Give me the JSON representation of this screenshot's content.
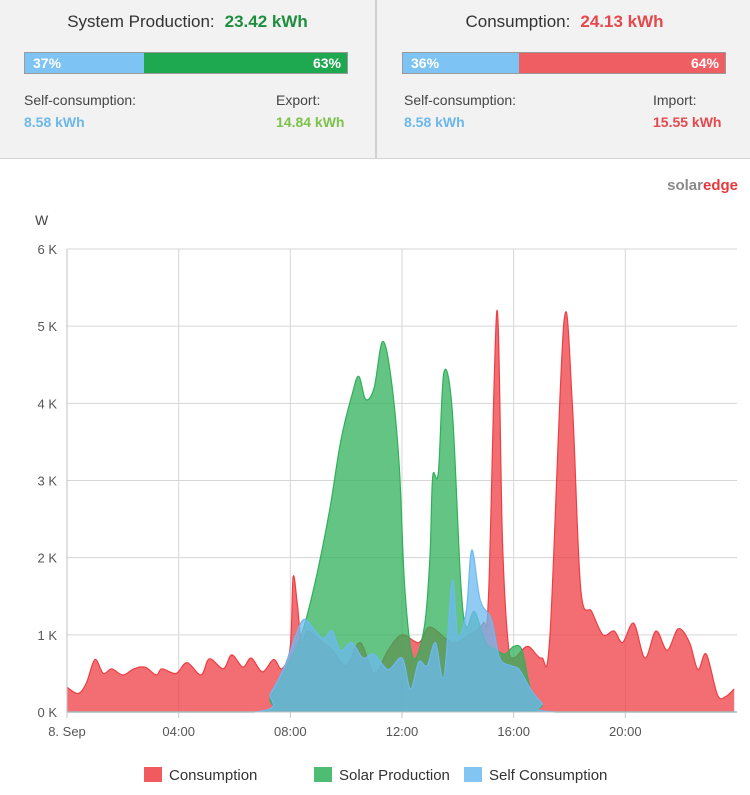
{
  "production": {
    "title": "System Production:",
    "value": "23.42 kWh",
    "self_pct_label": "37%",
    "export_pct_label": "63%",
    "self_fraction": 0.37,
    "self_label": "Self-consumption:",
    "self_value": "8.58 kWh",
    "export_label": "Export:",
    "export_value": "14.84 kWh"
  },
  "consumption": {
    "title": "Consumption:",
    "value": "24.13 kWh",
    "self_pct_label": "36%",
    "import_pct_label": "64%",
    "self_fraction": 0.36,
    "self_label": "Self-consumption:",
    "self_value": "8.58 kWh",
    "import_label": "Import:",
    "import_value": "15.55 kWh"
  },
  "colors": {
    "self_blue": "#7dc3f3",
    "export_green": "#1ea84f",
    "import_red": "#ef5e63",
    "value_green": "#1e8e3e",
    "value_red": "#e5484d",
    "value_blue": "#6cb8ea",
    "value_lightgreen": "#7cc24a"
  },
  "brand": {
    "logo_part1": "solar",
    "logo_part2": "edge"
  },
  "chart_data": {
    "type": "area",
    "ylabel": "W",
    "ylim": [
      0,
      6000
    ],
    "xlim": [
      0,
      24
    ],
    "yticks": [
      {
        "v": 0,
        "label": "0 K"
      },
      {
        "v": 1000,
        "label": "1 K"
      },
      {
        "v": 2000,
        "label": "2 K"
      },
      {
        "v": 3000,
        "label": "3 K"
      },
      {
        "v": 4000,
        "label": "4 K"
      },
      {
        "v": 5000,
        "label": "5 K"
      },
      {
        "v": 6000,
        "label": "6 K"
      }
    ],
    "xticks": [
      {
        "v": 0,
        "label": "8. Sep"
      },
      {
        "v": 4,
        "label": "04:00"
      },
      {
        "v": 8,
        "label": "08:00"
      },
      {
        "v": 12,
        "label": "12:00"
      },
      {
        "v": 16,
        "label": "16:00"
      },
      {
        "v": 20,
        "label": "20:00"
      }
    ],
    "grid": true,
    "legend": "bottom",
    "series": [
      {
        "name": "Consumption",
        "color": "#ee3e44",
        "points": [
          [
            0,
            320
          ],
          [
            0.4,
            240
          ],
          [
            0.7,
            380
          ],
          [
            1.0,
            680
          ],
          [
            1.3,
            500
          ],
          [
            1.6,
            560
          ],
          [
            2.0,
            480
          ],
          [
            2.4,
            560
          ],
          [
            2.8,
            580
          ],
          [
            3.2,
            480
          ],
          [
            3.4,
            560
          ],
          [
            3.9,
            500
          ],
          [
            4.3,
            640
          ],
          [
            4.8,
            480
          ],
          [
            5.1,
            690
          ],
          [
            5.6,
            560
          ],
          [
            5.9,
            740
          ],
          [
            6.3,
            580
          ],
          [
            6.6,
            700
          ],
          [
            7.0,
            520
          ],
          [
            7.4,
            680
          ],
          [
            7.7,
            560
          ],
          [
            8.0,
            850
          ],
          [
            8.1,
            1750
          ],
          [
            8.25,
            1400
          ],
          [
            8.4,
            900
          ],
          [
            8.6,
            1050
          ],
          [
            9.0,
            950
          ],
          [
            9.5,
            800
          ],
          [
            10.0,
            600
          ],
          [
            10.5,
            900
          ],
          [
            11.0,
            500
          ],
          [
            11.5,
            800
          ],
          [
            12.0,
            1000
          ],
          [
            12.6,
            900
          ],
          [
            13.0,
            1100
          ],
          [
            13.8,
            900
          ],
          [
            14.4,
            1000
          ],
          [
            14.9,
            1150
          ],
          [
            15.1,
            1500
          ],
          [
            15.4,
            5200
          ],
          [
            15.6,
            2200
          ],
          [
            15.8,
            900
          ],
          [
            16.0,
            700
          ],
          [
            16.5,
            850
          ],
          [
            17.0,
            700
          ],
          [
            17.3,
            1000
          ],
          [
            17.8,
            5050
          ],
          [
            18.1,
            4000
          ],
          [
            18.4,
            1600
          ],
          [
            18.8,
            1300
          ],
          [
            19.2,
            1000
          ],
          [
            19.6,
            1050
          ],
          [
            19.9,
            900
          ],
          [
            20.3,
            1150
          ],
          [
            20.7,
            700
          ],
          [
            21.1,
            1050
          ],
          [
            21.5,
            800
          ],
          [
            21.9,
            1080
          ],
          [
            22.3,
            900
          ],
          [
            22.6,
            550
          ],
          [
            22.9,
            750
          ],
          [
            23.3,
            220
          ],
          [
            23.6,
            200
          ],
          [
            23.9,
            300
          ]
        ]
      },
      {
        "name": "Solar Production",
        "color": "#2fb05a",
        "points": [
          [
            0,
            0
          ],
          [
            6.7,
            0
          ],
          [
            7.3,
            200
          ],
          [
            7.9,
            600
          ],
          [
            8.4,
            1000
          ],
          [
            8.9,
            1700
          ],
          [
            9.4,
            2600
          ],
          [
            9.8,
            3500
          ],
          [
            10.2,
            4100
          ],
          [
            10.45,
            4350
          ],
          [
            10.7,
            4050
          ],
          [
            11.0,
            4200
          ],
          [
            11.3,
            4800
          ],
          [
            11.6,
            4350
          ],
          [
            11.9,
            3200
          ],
          [
            12.1,
            1600
          ],
          [
            12.4,
            700
          ],
          [
            12.8,
            1100
          ],
          [
            13.0,
            2000
          ],
          [
            13.1,
            3050
          ],
          [
            13.3,
            3100
          ],
          [
            13.5,
            4400
          ],
          [
            13.8,
            3900
          ],
          [
            14.1,
            1700
          ],
          [
            14.3,
            1100
          ],
          [
            14.6,
            1300
          ],
          [
            15.0,
            900
          ],
          [
            15.4,
            800
          ],
          [
            15.7,
            750
          ],
          [
            16.0,
            850
          ],
          [
            16.3,
            800
          ],
          [
            16.6,
            300
          ],
          [
            17.0,
            100
          ],
          [
            17.5,
            0
          ],
          [
            24,
            0
          ]
        ]
      },
      {
        "name": "Self Consumption",
        "color": "#6cbaf0",
        "points": [
          [
            0,
            0
          ],
          [
            6.7,
            0
          ],
          [
            7.3,
            250
          ],
          [
            7.8,
            600
          ],
          [
            8.2,
            1000
          ],
          [
            8.5,
            1200
          ],
          [
            8.9,
            1050
          ],
          [
            9.2,
            950
          ],
          [
            9.5,
            1050
          ],
          [
            9.8,
            800
          ],
          [
            10.2,
            900
          ],
          [
            10.6,
            700
          ],
          [
            11.0,
            750
          ],
          [
            11.5,
            550
          ],
          [
            12.0,
            700
          ],
          [
            12.3,
            300
          ],
          [
            12.6,
            650
          ],
          [
            12.9,
            600
          ],
          [
            13.2,
            900
          ],
          [
            13.5,
            450
          ],
          [
            13.8,
            1700
          ],
          [
            14.0,
            1000
          ],
          [
            14.3,
            1300
          ],
          [
            14.5,
            2100
          ],
          [
            14.8,
            1450
          ],
          [
            15.2,
            1200
          ],
          [
            15.5,
            700
          ],
          [
            15.9,
            600
          ],
          [
            16.2,
            550
          ],
          [
            16.6,
            300
          ],
          [
            17.0,
            120
          ],
          [
            17.5,
            0
          ],
          [
            24,
            0
          ]
        ]
      }
    ]
  }
}
